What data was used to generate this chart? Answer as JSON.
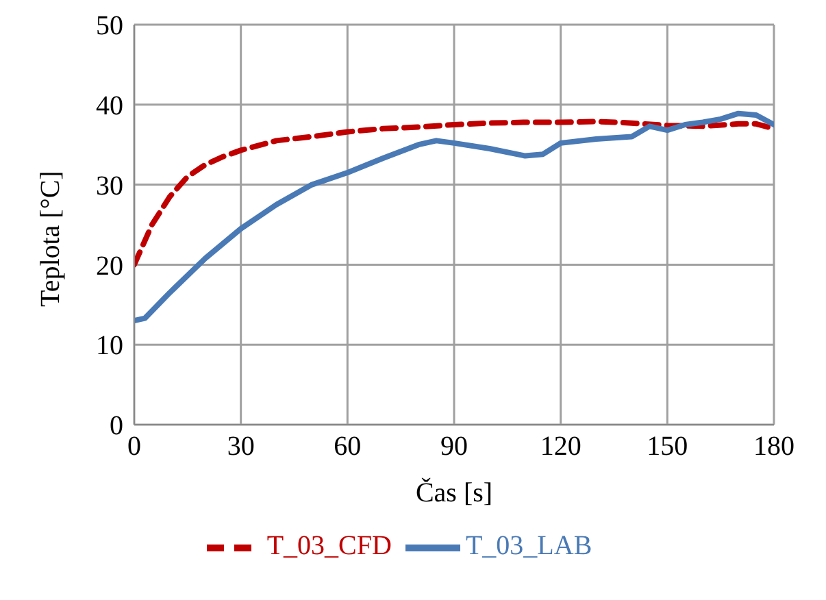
{
  "chart_data": {
    "type": "line",
    "xlabel": "Čas [s]",
    "ylabel": "Teplota [°C]",
    "xlim": [
      0,
      180
    ],
    "xticks": [
      0,
      30,
      60,
      90,
      120,
      150,
      180
    ],
    "ylim": [
      0,
      50
    ],
    "yticks": [
      0,
      10,
      20,
      30,
      40,
      50
    ],
    "grid": true,
    "legend": "bottom",
    "marker": "none",
    "series": [
      {
        "name": "T_03_CFD",
        "color": "#c00000",
        "line_style": "dashed",
        "x": [
          0,
          5,
          10,
          15,
          20,
          25,
          30,
          40,
          50,
          60,
          70,
          80,
          90,
          100,
          110,
          120,
          130,
          140,
          150,
          160,
          170,
          175,
          180
        ],
        "values": [
          20,
          25,
          28.5,
          31,
          32.5,
          33.5,
          34.3,
          35.5,
          36,
          36.6,
          37,
          37.2,
          37.5,
          37.7,
          37.8,
          37.8,
          37.9,
          37.7,
          37.4,
          37.3,
          37.6,
          37.6,
          37
        ]
      },
      {
        "name": "T_03_LAB",
        "color": "#4a7ab5",
        "line_style": "solid",
        "x": [
          0,
          3,
          10,
          20,
          30,
          40,
          50,
          60,
          70,
          80,
          85,
          90,
          100,
          110,
          115,
          120,
          130,
          140,
          145,
          150,
          155,
          160,
          165,
          170,
          175,
          180
        ],
        "values": [
          13,
          13.3,
          16.5,
          20.8,
          24.5,
          27.5,
          30,
          31.5,
          33.3,
          35,
          35.5,
          35.2,
          34.5,
          33.6,
          33.8,
          35.2,
          35.7,
          36,
          37.3,
          36.8,
          37.5,
          37.8,
          38.2,
          38.9,
          38.7,
          37.5
        ]
      }
    ]
  }
}
